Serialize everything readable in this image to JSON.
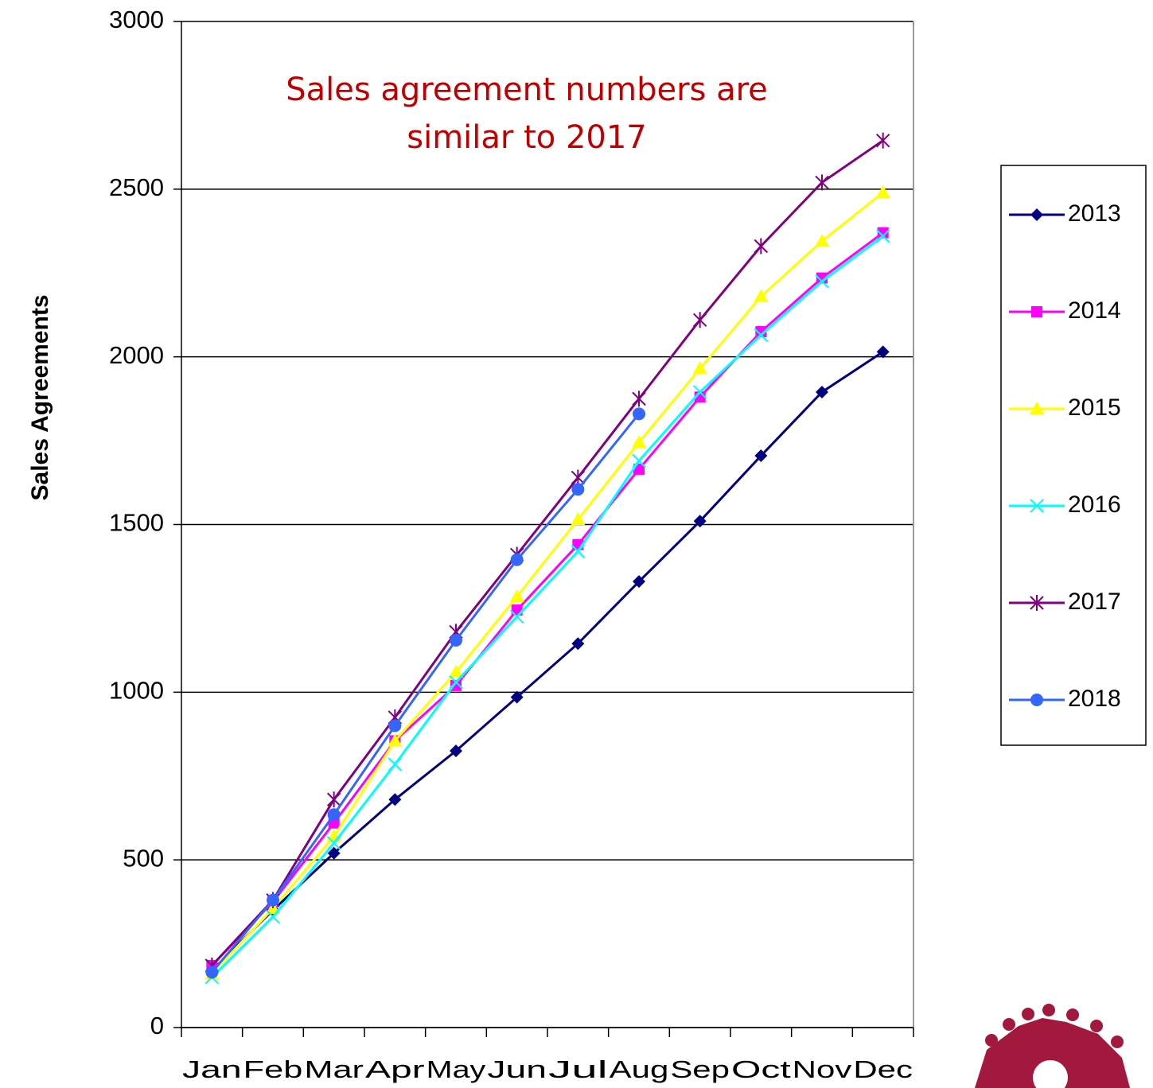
{
  "chart_data": {
    "type": "line",
    "annotation": [
      "Sales agreement numbers are",
      "similar to 2017"
    ],
    "y_label": "Sales Agreements",
    "categories": [
      "Jan",
      "Feb",
      "Mar",
      "Apr",
      "May",
      "Jun",
      "Jul",
      "Aug",
      "Sep",
      "Oct",
      "Nov",
      "Dec"
    ],
    "series": [
      {
        "name": "2013",
        "color": "#000080",
        "marker": "diamond",
        "values": [
          170,
          350,
          520,
          680,
          825,
          985,
          1145,
          1330,
          1510,
          1705,
          1895,
          2015
        ]
      },
      {
        "name": "2014",
        "color": "#ff00ff",
        "marker": "square",
        "values": [
          185,
          375,
          610,
          855,
          1020,
          1245,
          1440,
          1665,
          1880,
          2075,
          2235,
          2370
        ]
      },
      {
        "name": "2015",
        "color": "#ffff00",
        "marker": "triangle",
        "values": [
          160,
          355,
          570,
          855,
          1060,
          1285,
          1515,
          1745,
          1965,
          2180,
          2345,
          2490
        ]
      },
      {
        "name": "2016",
        "color": "#00ffff",
        "marker": "x",
        "values": [
          150,
          330,
          550,
          785,
          1030,
          1225,
          1420,
          1690,
          1895,
          2065,
          2225,
          2360
        ]
      },
      {
        "name": "2017",
        "color": "#800080",
        "marker": "star",
        "values": [
          185,
          380,
          680,
          925,
          1180,
          1410,
          1640,
          1875,
          2110,
          2330,
          2520,
          2645
        ]
      },
      {
        "name": "2018",
        "color": "#3366ff",
        "marker": "circle",
        "values": [
          165,
          380,
          635,
          900,
          1155,
          1395,
          1605,
          1830,
          null,
          null,
          null,
          null
        ]
      }
    ],
    "ylim": [
      0,
      3000
    ],
    "yticks": [
      0,
      500,
      1000,
      1500,
      2000,
      2500,
      3000
    ],
    "grid": true,
    "legend": "right"
  }
}
